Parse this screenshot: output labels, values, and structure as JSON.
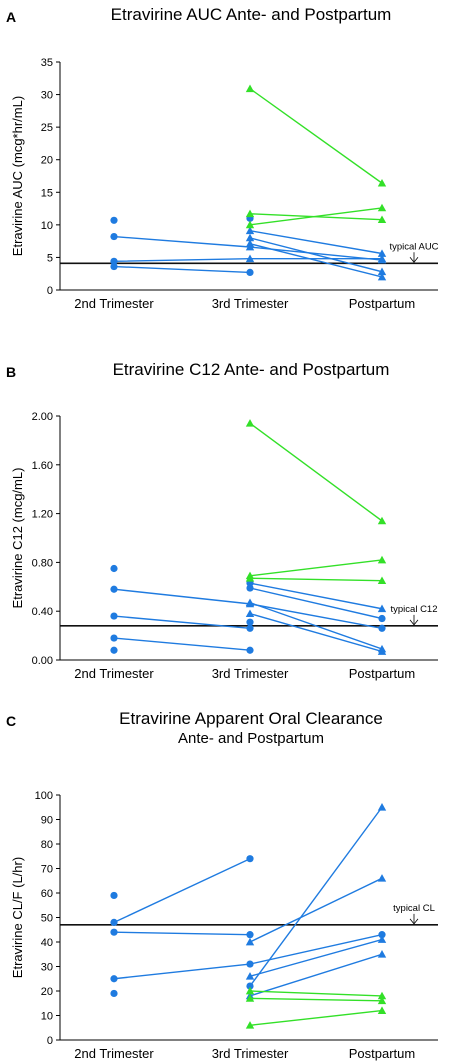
{
  "colors": {
    "blue": "#1f7be0",
    "green": "#33e028",
    "axis": "#000000"
  },
  "chart_data": [
    {
      "panel_label": "A",
      "type": "line",
      "title": "Etravirine AUC Ante- and Postpartum",
      "ylabel": "Etravirine AUC (mcg*hr/mL)",
      "categories": [
        "2nd Trimester",
        "3rd Trimester",
        "Postpartum"
      ],
      "ylim": [
        0,
        35
      ],
      "yticks": [
        "0",
        "5",
        "10",
        "15",
        "20",
        "25",
        "30",
        "35"
      ],
      "reference": {
        "value": 4.1,
        "label": "typical AUC"
      },
      "series": [
        {
          "color": "blue",
          "values": [
            10.7,
            null,
            null
          ],
          "markers": [
            "circle",
            "triangle",
            "triangle"
          ]
        },
        {
          "color": "blue",
          "values": [
            8.2,
            6.6,
            4.6
          ],
          "markers": [
            "circle",
            "triangle",
            "triangle"
          ]
        },
        {
          "color": "blue",
          "values": [
            4.4,
            4.8,
            4.8
          ],
          "markers": [
            "circle",
            "triangle",
            "triangle"
          ]
        },
        {
          "color": "blue",
          "values": [
            3.6,
            2.7,
            null
          ],
          "markers": [
            "circle",
            "circle",
            "triangle"
          ]
        },
        {
          "color": "blue",
          "values": [
            null,
            11.0,
            null
          ],
          "markers": [
            "circle",
            "circle",
            "triangle"
          ]
        },
        {
          "color": "blue",
          "values": [
            null,
            9.1,
            5.6
          ],
          "markers": [
            "circle",
            "triangle",
            "triangle"
          ]
        },
        {
          "color": "blue",
          "values": [
            null,
            8.0,
            2.8
          ],
          "markers": [
            "circle",
            "triangle",
            "triangle"
          ]
        },
        {
          "color": "blue",
          "values": [
            null,
            7.1,
            2.0
          ],
          "markers": [
            "circle",
            "triangle",
            "triangle"
          ]
        },
        {
          "color": "green",
          "values": [
            null,
            30.9,
            16.4
          ],
          "markers": [
            "triangle",
            "triangle",
            "triangle"
          ]
        },
        {
          "color": "green",
          "values": [
            null,
            10.0,
            12.6
          ],
          "markers": [
            "triangle",
            "triangle",
            "triangle"
          ]
        },
        {
          "color": "green",
          "values": [
            null,
            11.7,
            10.8
          ],
          "markers": [
            "triangle",
            "triangle",
            "triangle"
          ]
        }
      ]
    },
    {
      "panel_label": "B",
      "type": "line",
      "title": "Etravirine C12 Ante- and Postpartum",
      "ylabel": "Etravirine C12 (mcg/mL)",
      "categories": [
        "2nd Trimester",
        "3rd Trimester",
        "Postpartum"
      ],
      "ylim": [
        0,
        2.0
      ],
      "yticks": [
        "0.00",
        "0.40",
        "0.80",
        "1.20",
        "1.60",
        "2.00"
      ],
      "reference": {
        "value": 0.28,
        "label": "typical C12"
      },
      "series": [
        {
          "color": "blue",
          "values": [
            0.75,
            null,
            null
          ],
          "markers": [
            "circle",
            "triangle",
            "triangle"
          ]
        },
        {
          "color": "blue",
          "values": [
            0.58,
            0.46,
            0.26
          ],
          "markers": [
            "circle",
            "triangle",
            "circle"
          ]
        },
        {
          "color": "blue",
          "values": [
            0.36,
            0.26,
            null
          ],
          "markers": [
            "circle",
            "circle",
            "triangle"
          ]
        },
        {
          "color": "blue",
          "values": [
            0.18,
            0.08,
            null
          ],
          "markers": [
            "circle",
            "circle",
            "triangle"
          ]
        },
        {
          "color": "blue",
          "values": [
            0.08,
            null,
            null
          ],
          "markers": [
            "circle",
            "triangle",
            "triangle"
          ]
        },
        {
          "color": "blue",
          "values": [
            null,
            0.63,
            0.42
          ],
          "markers": [
            "circle",
            "circle",
            "triangle"
          ]
        },
        {
          "color": "blue",
          "values": [
            null,
            0.59,
            0.34
          ],
          "markers": [
            "circle",
            "circle",
            "circle"
          ]
        },
        {
          "color": "blue",
          "values": [
            null,
            0.47,
            0.09
          ],
          "markers": [
            "circle",
            "triangle",
            "triangle"
          ]
        },
        {
          "color": "blue",
          "values": [
            null,
            0.38,
            0.07
          ],
          "markers": [
            "circle",
            "triangle",
            "triangle"
          ]
        },
        {
          "color": "blue",
          "values": [
            null,
            0.31,
            null
          ],
          "markers": [
            "circle",
            "circle",
            "triangle"
          ]
        },
        {
          "color": "green",
          "values": [
            null,
            1.94,
            1.14
          ],
          "markers": [
            "triangle",
            "triangle",
            "triangle"
          ]
        },
        {
          "color": "green",
          "values": [
            null,
            0.69,
            0.82
          ],
          "markers": [
            "triangle",
            "triangle",
            "triangle"
          ]
        },
        {
          "color": "green",
          "values": [
            null,
            0.67,
            0.65
          ],
          "markers": [
            "triangle",
            "triangle",
            "triangle"
          ]
        }
      ]
    },
    {
      "panel_label": "C",
      "type": "line",
      "title": "Etravirine Apparent Oral Clearance",
      "subtitle": "Ante- and Postpartum",
      "ylabel": "Etravirine CL/F (L/hr)",
      "categories": [
        "2nd Trimester",
        "3rd Trimester",
        "Postpartum"
      ],
      "ylim": [
        0,
        100
      ],
      "yticks": [
        "0",
        "10",
        "20",
        "30",
        "40",
        "50",
        "60",
        "70",
        "80",
        "90",
        "100"
      ],
      "reference": {
        "value": 47,
        "label": "typical CL"
      },
      "series": [
        {
          "color": "blue",
          "values": [
            59,
            null,
            null
          ],
          "markers": [
            "circle",
            "triangle",
            "triangle"
          ]
        },
        {
          "color": "blue",
          "values": [
            48,
            74,
            null
          ],
          "markers": [
            "circle",
            "circle",
            "triangle"
          ]
        },
        {
          "color": "blue",
          "values": [
            44,
            43,
            null
          ],
          "markers": [
            "circle",
            "circle",
            "triangle"
          ]
        },
        {
          "color": "blue",
          "values": [
            25,
            31,
            43
          ],
          "markers": [
            "circle",
            "circle",
            "circle"
          ]
        },
        {
          "color": "blue",
          "values": [
            19,
            null,
            null
          ],
          "markers": [
            "circle",
            "triangle",
            "triangle"
          ]
        },
        {
          "color": "blue",
          "values": [
            null,
            40,
            66
          ],
          "markers": [
            "circle",
            "triangle",
            "triangle"
          ]
        },
        {
          "color": "blue",
          "values": [
            null,
            26,
            41
          ],
          "markers": [
            "circle",
            "triangle",
            "triangle"
          ]
        },
        {
          "color": "blue",
          "values": [
            null,
            22,
            95
          ],
          "markers": [
            "circle",
            "circle",
            "triangle"
          ]
        },
        {
          "color": "blue",
          "values": [
            null,
            18,
            35
          ],
          "markers": [
            "circle",
            "triangle",
            "triangle"
          ]
        },
        {
          "color": "green",
          "values": [
            null,
            20,
            18
          ],
          "markers": [
            "triangle",
            "triangle",
            "triangle"
          ]
        },
        {
          "color": "green",
          "values": [
            null,
            17,
            16
          ],
          "markers": [
            "triangle",
            "triangle",
            "triangle"
          ]
        },
        {
          "color": "green",
          "values": [
            null,
            6,
            12
          ],
          "markers": [
            "triangle",
            "triangle",
            "triangle"
          ]
        }
      ]
    }
  ]
}
